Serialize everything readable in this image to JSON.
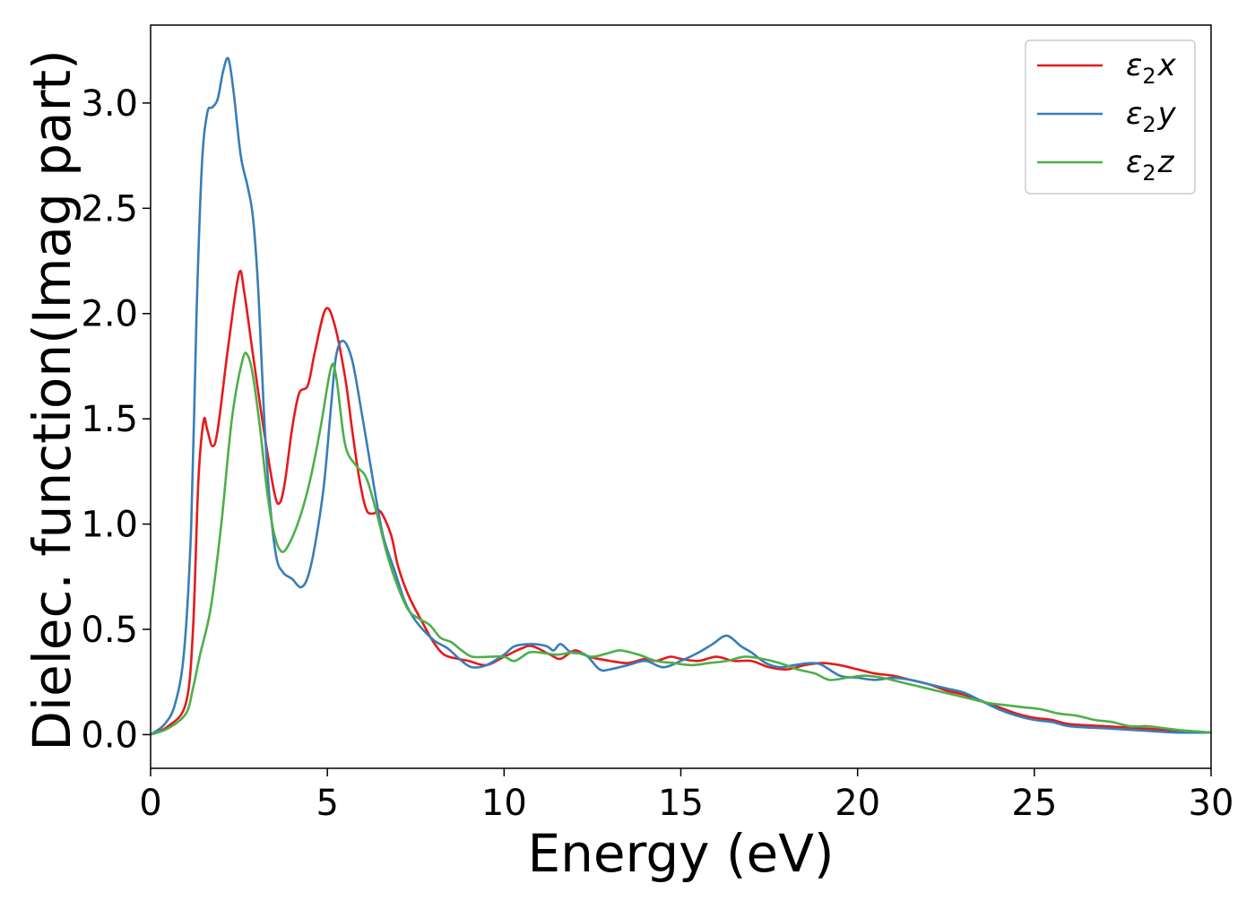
{
  "chart_data": {
    "type": "line",
    "title": "",
    "xlabel": "Energy (eV)",
    "ylabel": "Dielec. function(Imag part)",
    "xlim": [
      0,
      30
    ],
    "ylim": [
      -0.16,
      3.37
    ],
    "xticks": [
      0,
      5,
      10,
      15,
      20,
      25,
      30
    ],
    "yticks": [
      0.0,
      0.5,
      1.0,
      1.5,
      2.0,
      2.5,
      3.0
    ],
    "xtick_labels": [
      "0",
      "5",
      "10",
      "15",
      "20",
      "25",
      "30"
    ],
    "ytick_labels": [
      "0.0",
      "0.5",
      "1.0",
      "1.5",
      "2.0",
      "2.5",
      "3.0"
    ],
    "grid": false,
    "legend_position": "top-right",
    "series": [
      {
        "name": "x",
        "legend_base": "ε",
        "legend_sub": "2",
        "legend_var": "x",
        "color": "#e41a1c",
        "points": [
          [
            0,
            0
          ],
          [
            0.5,
            0.04
          ],
          [
            1.0,
            0.15
          ],
          [
            1.2,
            0.5
          ],
          [
            1.35,
            1.2
          ],
          [
            1.5,
            1.49
          ],
          [
            1.6,
            1.45
          ],
          [
            1.75,
            1.37
          ],
          [
            1.9,
            1.45
          ],
          [
            2.2,
            1.85
          ],
          [
            2.5,
            2.19
          ],
          [
            2.65,
            2.1
          ],
          [
            2.9,
            1.8
          ],
          [
            3.2,
            1.45
          ],
          [
            3.5,
            1.15
          ],
          [
            3.65,
            1.1
          ],
          [
            3.8,
            1.2
          ],
          [
            4.0,
            1.45
          ],
          [
            4.2,
            1.62
          ],
          [
            4.45,
            1.66
          ],
          [
            4.65,
            1.82
          ],
          [
            4.95,
            2.02
          ],
          [
            5.2,
            1.95
          ],
          [
            5.5,
            1.7
          ],
          [
            5.7,
            1.45
          ],
          [
            5.9,
            1.22
          ],
          [
            6.1,
            1.07
          ],
          [
            6.3,
            1.05
          ],
          [
            6.5,
            1.06
          ],
          [
            6.8,
            0.95
          ],
          [
            7.0,
            0.8
          ],
          [
            7.3,
            0.66
          ],
          [
            7.7,
            0.53
          ],
          [
            8.0,
            0.44
          ],
          [
            8.3,
            0.38
          ],
          [
            8.7,
            0.36
          ],
          [
            9.0,
            0.35
          ],
          [
            9.5,
            0.33
          ],
          [
            10.0,
            0.37
          ],
          [
            10.5,
            0.41
          ],
          [
            10.8,
            0.42
          ],
          [
            11.3,
            0.38
          ],
          [
            11.6,
            0.36
          ],
          [
            12.0,
            0.4
          ],
          [
            12.4,
            0.37
          ],
          [
            13.0,
            0.35
          ],
          [
            13.5,
            0.34
          ],
          [
            14.0,
            0.36
          ],
          [
            14.3,
            0.35
          ],
          [
            14.7,
            0.37
          ],
          [
            15.0,
            0.36
          ],
          [
            15.5,
            0.35
          ],
          [
            16.0,
            0.37
          ],
          [
            16.5,
            0.35
          ],
          [
            17.0,
            0.35
          ],
          [
            17.5,
            0.32
          ],
          [
            18.0,
            0.31
          ],
          [
            18.5,
            0.33
          ],
          [
            19.0,
            0.34
          ],
          [
            19.5,
            0.33
          ],
          [
            20.0,
            0.31
          ],
          [
            20.5,
            0.29
          ],
          [
            21.0,
            0.28
          ],
          [
            21.5,
            0.26
          ],
          [
            22.0,
            0.24
          ],
          [
            22.5,
            0.21
          ],
          [
            23.0,
            0.19
          ],
          [
            23.5,
            0.16
          ],
          [
            24.0,
            0.13
          ],
          [
            24.5,
            0.1
          ],
          [
            25.0,
            0.08
          ],
          [
            25.5,
            0.07
          ],
          [
            26.0,
            0.05
          ],
          [
            27.0,
            0.04
          ],
          [
            28.0,
            0.03
          ],
          [
            29.0,
            0.02
          ],
          [
            30.0,
            0.01
          ]
        ]
      },
      {
        "name": "y",
        "legend_base": "ε",
        "legend_sub": "2",
        "legend_var": "y",
        "color": "#377eb8",
        "points": [
          [
            0,
            0
          ],
          [
            0.4,
            0.05
          ],
          [
            0.7,
            0.15
          ],
          [
            0.95,
            0.4
          ],
          [
            1.15,
            1.0
          ],
          [
            1.3,
            2.0
          ],
          [
            1.45,
            2.7
          ],
          [
            1.6,
            2.95
          ],
          [
            1.75,
            2.98
          ],
          [
            1.9,
            3.02
          ],
          [
            2.05,
            3.15
          ],
          [
            2.2,
            3.21
          ],
          [
            2.35,
            3.05
          ],
          [
            2.55,
            2.75
          ],
          [
            2.75,
            2.6
          ],
          [
            2.9,
            2.45
          ],
          [
            3.05,
            2.1
          ],
          [
            3.2,
            1.55
          ],
          [
            3.35,
            1.15
          ],
          [
            3.55,
            0.85
          ],
          [
            3.75,
            0.77
          ],
          [
            4.0,
            0.74
          ],
          [
            4.25,
            0.7
          ],
          [
            4.45,
            0.75
          ],
          [
            4.65,
            0.9
          ],
          [
            4.9,
            1.18
          ],
          [
            5.1,
            1.55
          ],
          [
            5.25,
            1.8
          ],
          [
            5.45,
            1.87
          ],
          [
            5.7,
            1.78
          ],
          [
            5.95,
            1.55
          ],
          [
            6.2,
            1.3
          ],
          [
            6.4,
            1.1
          ],
          [
            6.6,
            0.93
          ],
          [
            6.9,
            0.78
          ],
          [
            7.2,
            0.63
          ],
          [
            7.5,
            0.54
          ],
          [
            8.0,
            0.45
          ],
          [
            8.4,
            0.41
          ],
          [
            8.8,
            0.35
          ],
          [
            9.1,
            0.32
          ],
          [
            9.5,
            0.33
          ],
          [
            10.0,
            0.38
          ],
          [
            10.3,
            0.42
          ],
          [
            10.8,
            0.43
          ],
          [
            11.2,
            0.42
          ],
          [
            11.4,
            0.4
          ],
          [
            11.6,
            0.43
          ],
          [
            11.9,
            0.39
          ],
          [
            12.3,
            0.38
          ],
          [
            12.7,
            0.31
          ],
          [
            13.0,
            0.31
          ],
          [
            13.5,
            0.33
          ],
          [
            14.0,
            0.35
          ],
          [
            14.5,
            0.32
          ],
          [
            15.0,
            0.35
          ],
          [
            15.5,
            0.39
          ],
          [
            15.9,
            0.43
          ],
          [
            16.3,
            0.47
          ],
          [
            16.7,
            0.42
          ],
          [
            17.0,
            0.39
          ],
          [
            17.4,
            0.34
          ],
          [
            17.8,
            0.32
          ],
          [
            18.2,
            0.33
          ],
          [
            18.7,
            0.34
          ],
          [
            19.0,
            0.33
          ],
          [
            19.5,
            0.28
          ],
          [
            20.0,
            0.27
          ],
          [
            20.5,
            0.26
          ],
          [
            21.0,
            0.27
          ],
          [
            21.5,
            0.26
          ],
          [
            22.0,
            0.24
          ],
          [
            22.5,
            0.22
          ],
          [
            23.0,
            0.2
          ],
          [
            23.5,
            0.16
          ],
          [
            24.0,
            0.12
          ],
          [
            24.5,
            0.09
          ],
          [
            25.0,
            0.07
          ],
          [
            25.5,
            0.06
          ],
          [
            26.0,
            0.04
          ],
          [
            27.0,
            0.03
          ],
          [
            28.0,
            0.02
          ],
          [
            29.0,
            0.01
          ],
          [
            30.0,
            0.01
          ]
        ]
      },
      {
        "name": "z",
        "legend_base": "ε",
        "legend_sub": "2",
        "legend_var": "z",
        "color": "#4daf4a",
        "points": [
          [
            0,
            0
          ],
          [
            0.5,
            0.03
          ],
          [
            1.0,
            0.1
          ],
          [
            1.2,
            0.22
          ],
          [
            1.4,
            0.38
          ],
          [
            1.7,
            0.6
          ],
          [
            2.0,
            1.0
          ],
          [
            2.3,
            1.5
          ],
          [
            2.6,
            1.78
          ],
          [
            2.75,
            1.8
          ],
          [
            2.9,
            1.7
          ],
          [
            3.1,
            1.45
          ],
          [
            3.3,
            1.15
          ],
          [
            3.5,
            0.95
          ],
          [
            3.7,
            0.87
          ],
          [
            3.9,
            0.9
          ],
          [
            4.2,
            1.02
          ],
          [
            4.5,
            1.2
          ],
          [
            4.8,
            1.45
          ],
          [
            5.1,
            1.74
          ],
          [
            5.25,
            1.7
          ],
          [
            5.5,
            1.38
          ],
          [
            5.8,
            1.28
          ],
          [
            6.1,
            1.22
          ],
          [
            6.4,
            1.05
          ],
          [
            6.7,
            0.85
          ],
          [
            7.0,
            0.7
          ],
          [
            7.3,
            0.59
          ],
          [
            7.6,
            0.55
          ],
          [
            7.9,
            0.52
          ],
          [
            8.2,
            0.46
          ],
          [
            8.5,
            0.44
          ],
          [
            8.8,
            0.4
          ],
          [
            9.1,
            0.37
          ],
          [
            9.6,
            0.37
          ],
          [
            10.0,
            0.37
          ],
          [
            10.3,
            0.35
          ],
          [
            10.7,
            0.39
          ],
          [
            11.0,
            0.39
          ],
          [
            11.5,
            0.38
          ],
          [
            12.0,
            0.39
          ],
          [
            12.5,
            0.37
          ],
          [
            13.0,
            0.39
          ],
          [
            13.3,
            0.4
          ],
          [
            13.8,
            0.38
          ],
          [
            14.3,
            0.35
          ],
          [
            14.8,
            0.34
          ],
          [
            15.3,
            0.33
          ],
          [
            15.8,
            0.34
          ],
          [
            16.3,
            0.35
          ],
          [
            16.8,
            0.37
          ],
          [
            17.3,
            0.36
          ],
          [
            17.8,
            0.34
          ],
          [
            18.3,
            0.31
          ],
          [
            18.8,
            0.29
          ],
          [
            19.2,
            0.26
          ],
          [
            19.7,
            0.27
          ],
          [
            20.2,
            0.28
          ],
          [
            20.7,
            0.27
          ],
          [
            21.2,
            0.25
          ],
          [
            21.7,
            0.23
          ],
          [
            22.2,
            0.21
          ],
          [
            22.7,
            0.19
          ],
          [
            23.2,
            0.17
          ],
          [
            23.7,
            0.15
          ],
          [
            24.2,
            0.14
          ],
          [
            24.7,
            0.13
          ],
          [
            25.2,
            0.12
          ],
          [
            25.7,
            0.1
          ],
          [
            26.2,
            0.09
          ],
          [
            26.7,
            0.07
          ],
          [
            27.2,
            0.06
          ],
          [
            27.7,
            0.04
          ],
          [
            28.2,
            0.04
          ],
          [
            28.7,
            0.03
          ],
          [
            29.2,
            0.02
          ],
          [
            30.0,
            0.01
          ]
        ]
      }
    ]
  }
}
